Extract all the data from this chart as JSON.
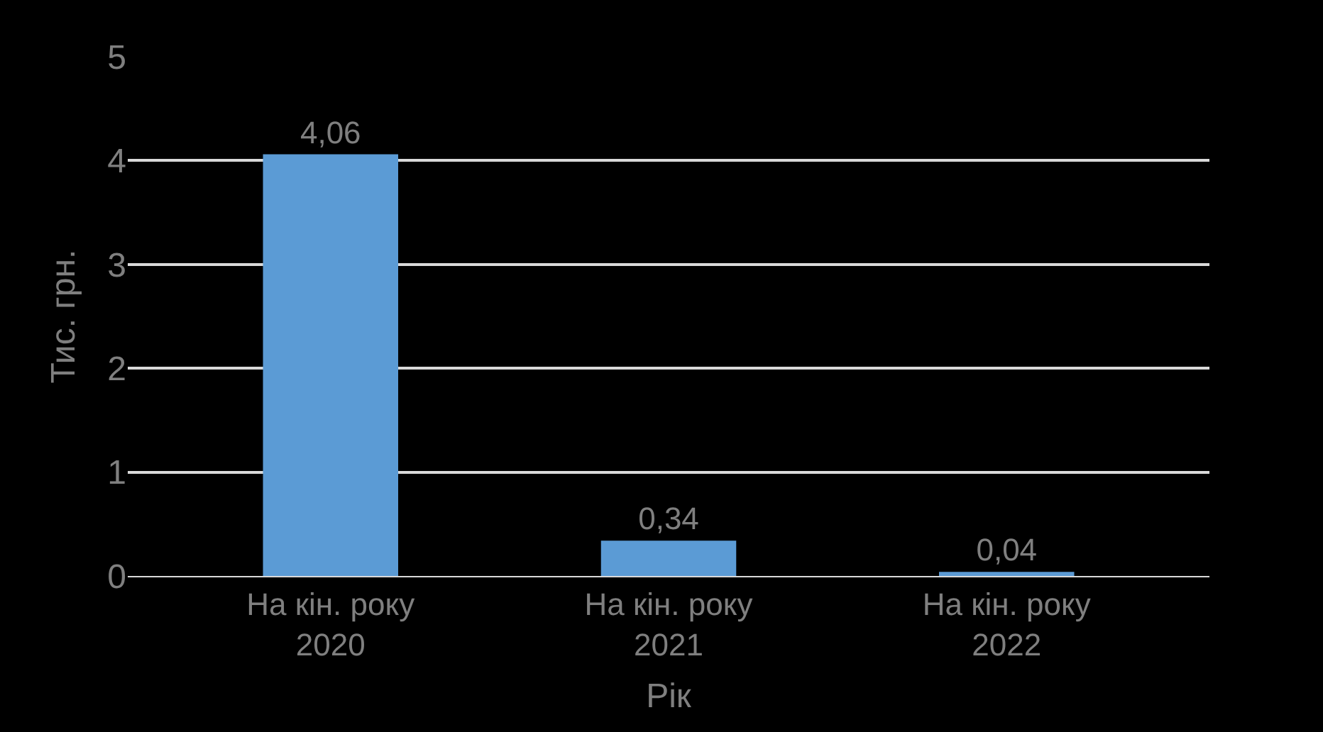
{
  "chart_data": {
    "type": "bar",
    "xlabel": "Рік",
    "ylabel": "Тис. грн.",
    "categories": [
      "На кін. року 2020",
      "На кін. року 2021",
      "На кін. року 2022"
    ],
    "values": [
      4.06,
      0.34,
      0.04
    ],
    "color": "#5b9bd5",
    "value_labels": [
      "4,06",
      "0,34",
      "0,04"
    ],
    "ylim": [
      0,
      5
    ],
    "yticks": [
      0,
      1,
      2,
      3,
      4,
      5
    ],
    "grid": "y"
  }
}
